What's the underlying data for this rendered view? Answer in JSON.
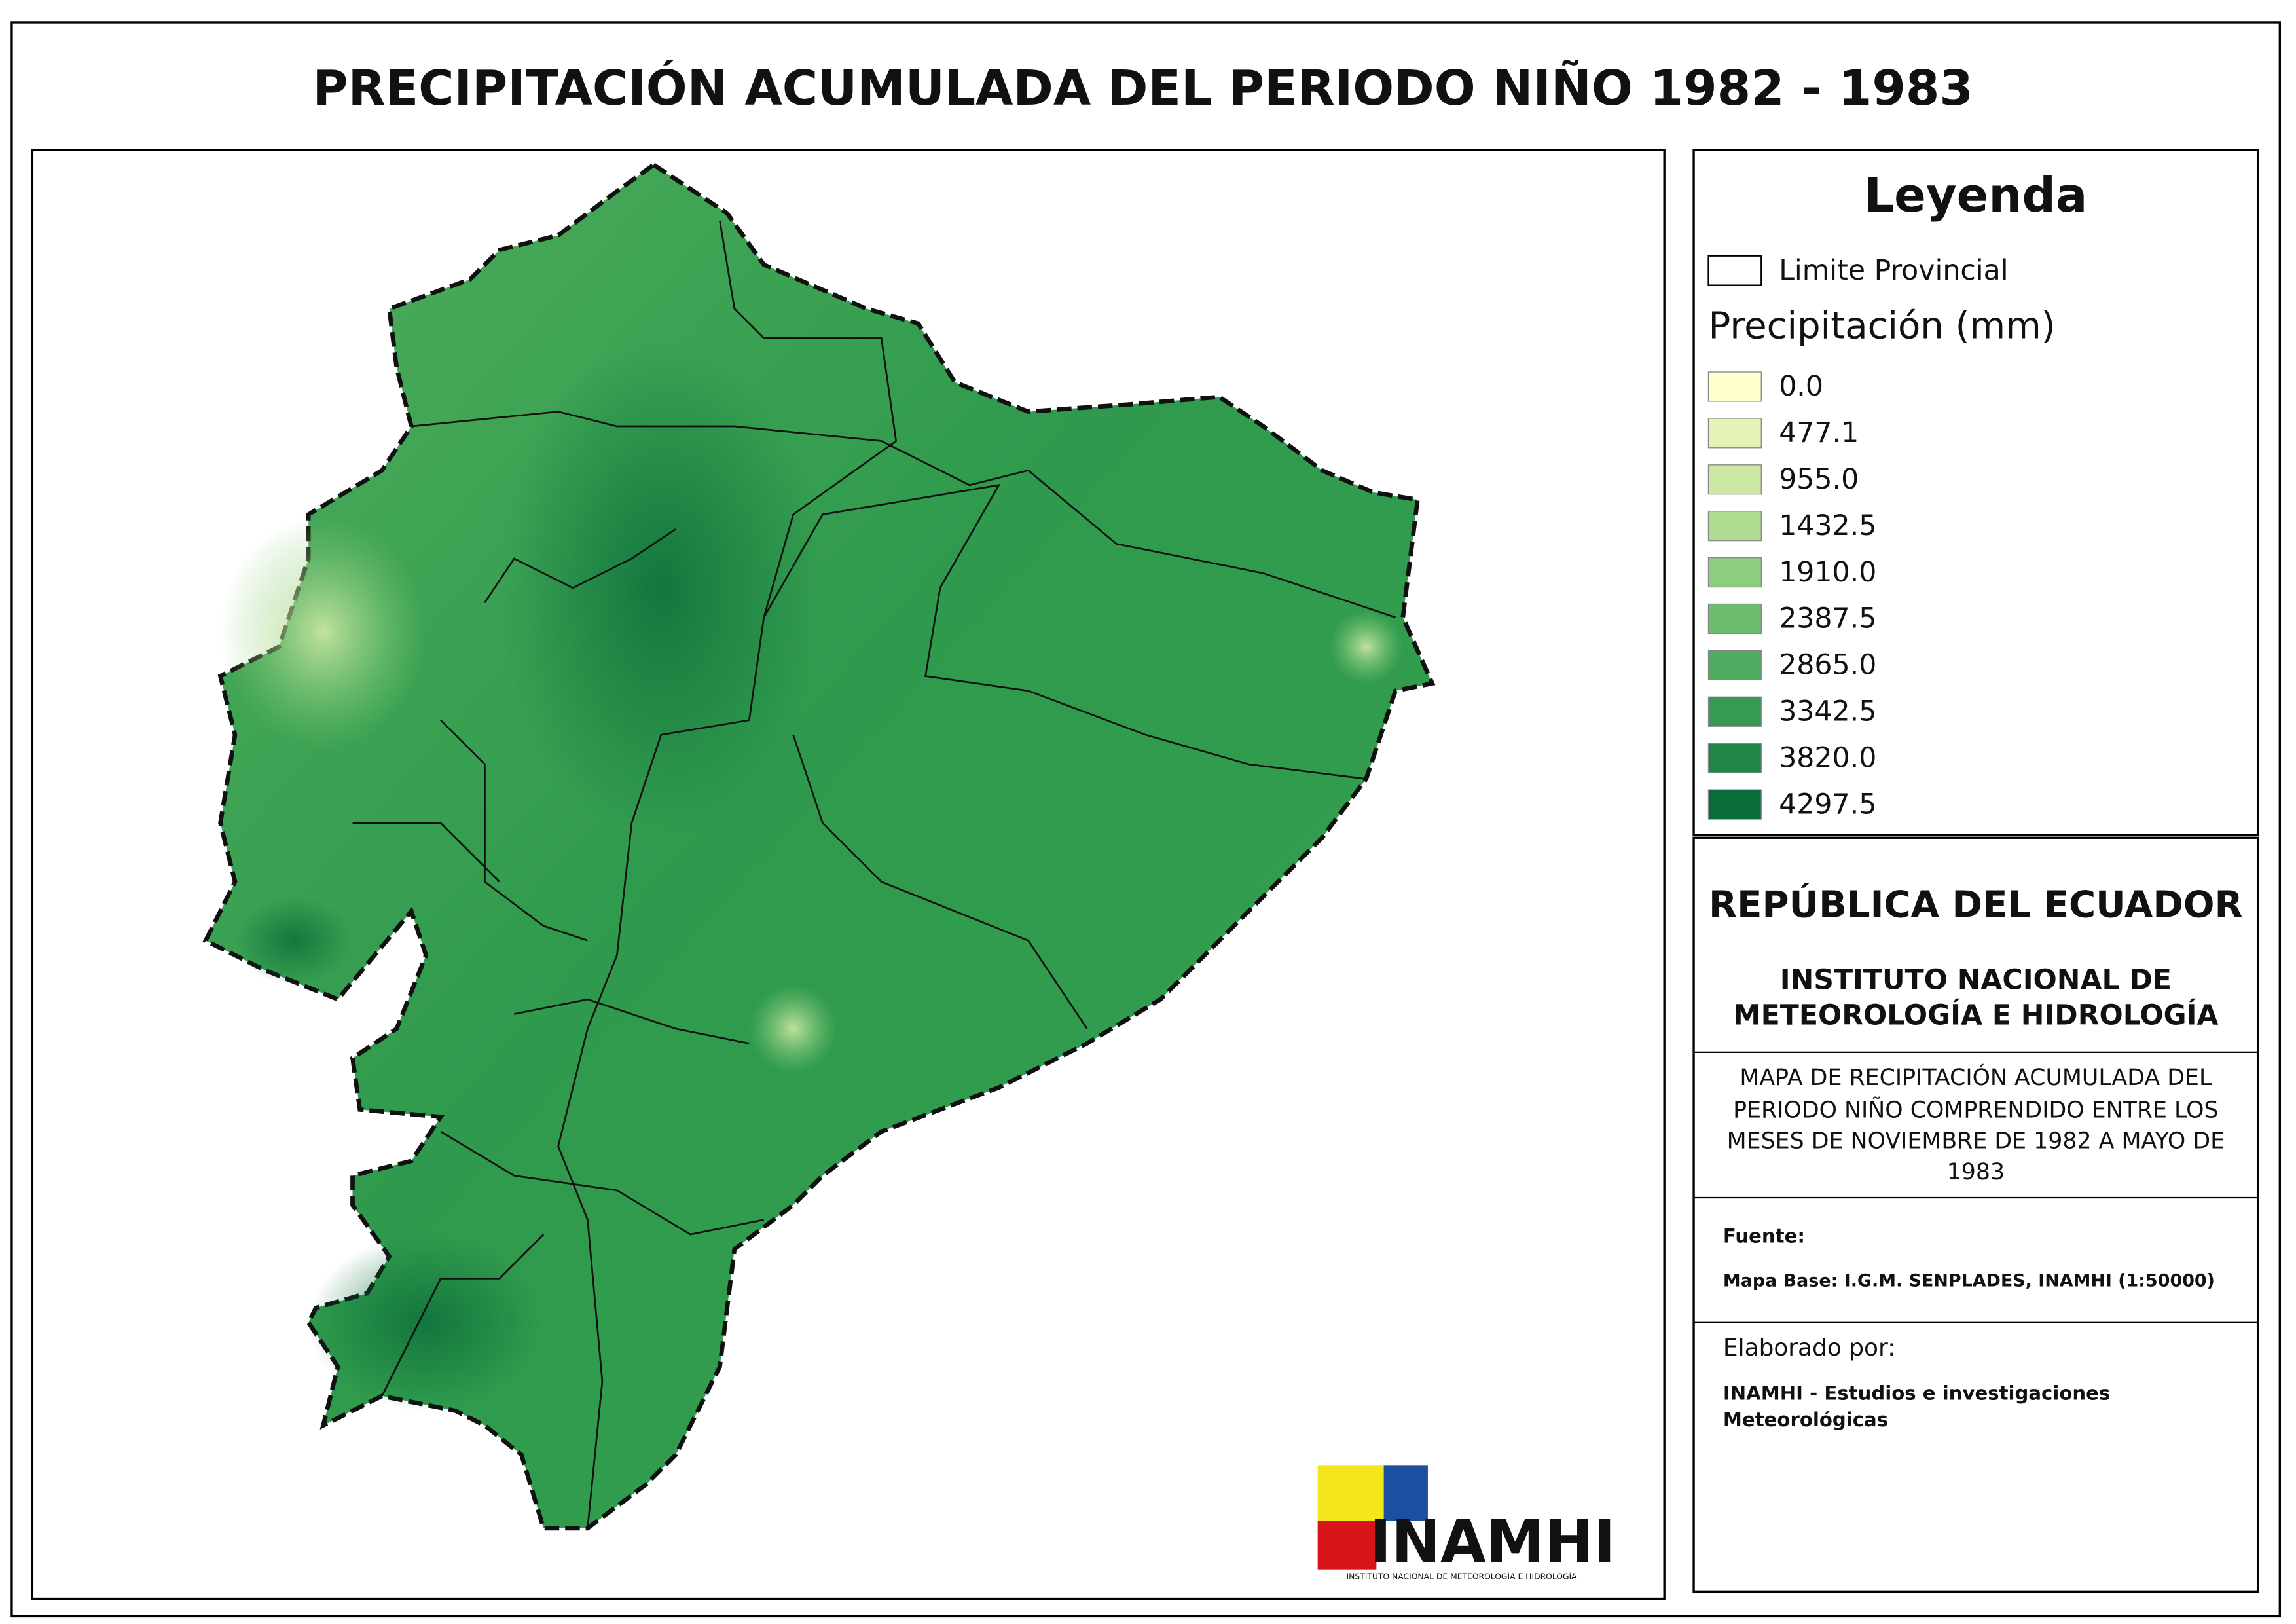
{
  "header": {
    "title": "PRECIPITACIÓN ACUMULADA DEL PERIODO NIÑO 1982 - 1983"
  },
  "legend": {
    "title": "Leyenda",
    "boundary": "Limite Provincial",
    "subtitle": "Precipitación (mm)",
    "classes": [
      {
        "label": "0.0",
        "color": "#ffffcc"
      },
      {
        "label": "477.1",
        "color": "#e4f4b7"
      },
      {
        "label": "955.0",
        "color": "#cbe9a4"
      },
      {
        "label": "1432.5",
        "color": "#aedd92"
      },
      {
        "label": "1910.0",
        "color": "#8dcd80"
      },
      {
        "label": "2387.5",
        "color": "#6cbd70"
      },
      {
        "label": "2865.0",
        "color": "#4eac61"
      },
      {
        "label": "3342.5",
        "color": "#369a55"
      },
      {
        "label": "3820.0",
        "color": "#1f8647"
      },
      {
        "label": "4297.5",
        "color": "#0a6d39"
      }
    ]
  },
  "info": {
    "country": "REPÚBLICA DEL ECUADOR",
    "institute": [
      "INSTITUTO NACIONAL DE",
      "METEOROLOGÍA E HIDROLOGÍA"
    ],
    "description": [
      "MAPA DE RECIPITACIÓN ACUMULADA DEL",
      "PERIODO NIÑO COMPRENDIDO ENTRE LOS",
      "MESES DE NOVIEMBRE DE 1982 A MAYO DE",
      "1983"
    ],
    "source_label": "Fuente:",
    "source": "Mapa Base: I.G.M. SENPLADES, INAMHI (1:50000)",
    "author_label": "Elaborado por:",
    "author": [
      "INAMHI - Estudios e investigaciones",
      "Meteorológicas"
    ]
  },
  "logo": {
    "name": "INAMHI",
    "subtitle": "INSTITUTO NACIONAL DE METEOROLOGÍA E HIDROLOGÍA"
  }
}
